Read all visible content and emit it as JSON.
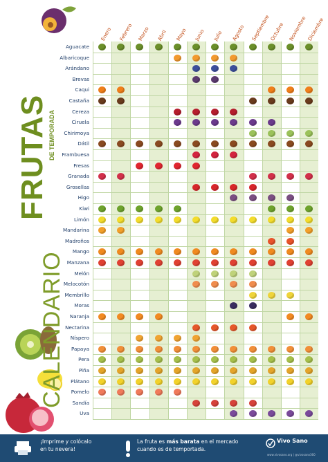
{
  "title": {
    "main": "CALENDARIO",
    "accent": "FRUTAS",
    "sub": "DE TEMPORADA"
  },
  "months": [
    "Enero",
    "Febrero",
    "Marzo",
    "Abril",
    "Mayo",
    "Junio",
    "Julio",
    "Agosto",
    "Septiembre",
    "Octubre",
    "Noviembre",
    "Diciembre"
  ],
  "fruits": [
    {
      "name": "Aguacate",
      "color": "#6b8f2a",
      "months": [
        0,
        1,
        2,
        3,
        4,
        5,
        6,
        7,
        8,
        9,
        10,
        11
      ]
    },
    {
      "name": "Albaricoque",
      "color": "#f29a2e",
      "months": [
        4,
        5,
        6,
        7
      ]
    },
    {
      "name": "Arándano",
      "color": "#3c4f9c",
      "months": [
        5,
        6,
        7
      ]
    },
    {
      "name": "Brevas",
      "color": "#5b3a6e",
      "months": [
        5,
        6
      ]
    },
    {
      "name": "Caqui",
      "color": "#f07f1a",
      "months": [
        0,
        1,
        9,
        10,
        11
      ]
    },
    {
      "name": "Castaña",
      "color": "#6a3b1d",
      "months": [
        0,
        1,
        8,
        9,
        10,
        11
      ]
    },
    {
      "name": "Cereza",
      "color": "#b51d2c",
      "months": [
        4,
        5,
        6,
        7
      ]
    },
    {
      "name": "Ciruela",
      "color": "#6b3a8c",
      "months": [
        4,
        5,
        6,
        7,
        8,
        9
      ]
    },
    {
      "name": "Chirimoya",
      "color": "#9bc25a",
      "months": [
        8,
        9,
        10,
        11
      ]
    },
    {
      "name": "Dátil",
      "color": "#8a4a20",
      "months": [
        0,
        1,
        2,
        3,
        4,
        5,
        6,
        7,
        8,
        9,
        10,
        11
      ]
    },
    {
      "name": "Frambuesa",
      "color": "#d3233f",
      "months": [
        5,
        6,
        7
      ]
    },
    {
      "name": "Fresas",
      "color": "#e0262f",
      "months": [
        2,
        3,
        4,
        5
      ]
    },
    {
      "name": "Granada",
      "color": "#d2304a",
      "months": [
        0,
        1,
        8,
        9,
        10,
        11
      ]
    },
    {
      "name": "Grosellas",
      "color": "#d7262a",
      "months": [
        5,
        6,
        7,
        8
      ]
    },
    {
      "name": "Higo",
      "color": "#7b4f82",
      "months": [
        7,
        8,
        9,
        10
      ]
    },
    {
      "name": "Kiwi",
      "color": "#6ea32c",
      "months": [
        0,
        1,
        2,
        3,
        4,
        9,
        10,
        11
      ]
    },
    {
      "name": "Limón",
      "color": "#f3dc2c",
      "months": [
        0,
        1,
        2,
        3,
        4,
        5,
        6,
        7,
        8,
        9,
        10,
        11
      ]
    },
    {
      "name": "Mandarina",
      "color": "#f3a02a",
      "months": [
        0,
        1,
        10,
        11
      ]
    },
    {
      "name": "Madroños",
      "color": "#e9542a",
      "months": [
        9,
        10
      ]
    },
    {
      "name": "Mango",
      "color": "#f08a1f",
      "months": [
        0,
        1,
        2,
        3,
        4,
        5,
        6,
        7,
        8,
        9,
        10,
        11
      ]
    },
    {
      "name": "Manzana",
      "color": "#e04132",
      "months": [
        0,
        1,
        2,
        3,
        4,
        5,
        6,
        7,
        8,
        9,
        10,
        11
      ]
    },
    {
      "name": "Melón",
      "color": "#bfd27a",
      "months": [
        5,
        6,
        7,
        8
      ]
    },
    {
      "name": "Melocotón",
      "color": "#f08c4d",
      "months": [
        5,
        6,
        7,
        8
      ]
    },
    {
      "name": "Membrillo",
      "color": "#efd43a",
      "months": [
        8,
        9,
        10
      ]
    },
    {
      "name": "Moras",
      "color": "#3a2d60",
      "months": [
        7,
        8
      ]
    },
    {
      "name": "Naranja",
      "color": "#f28a22",
      "months": [
        0,
        1,
        2,
        3,
        10,
        11
      ]
    },
    {
      "name": "Nectarina",
      "color": "#e5572a",
      "months": [
        5,
        6,
        7,
        8
      ]
    },
    {
      "name": "Níspero",
      "color": "#f0a432",
      "months": [
        2,
        3,
        4,
        5
      ]
    },
    {
      "name": "Papaya",
      "color": "#f18f38",
      "months": [
        0,
        1,
        2,
        3,
        4,
        5,
        6,
        7,
        8,
        9,
        10,
        11
      ]
    },
    {
      "name": "Pera",
      "color": "#a6c04a",
      "months": [
        0,
        1,
        2,
        3,
        4,
        5,
        6,
        7,
        8,
        9,
        10,
        11
      ]
    },
    {
      "name": "Piña",
      "color": "#e4a52a",
      "months": [
        0,
        1,
        2,
        3,
        4,
        5,
        6,
        7,
        8,
        9,
        10,
        11
      ]
    },
    {
      "name": "Plátano",
      "color": "#f2d22a",
      "months": [
        0,
        1,
        2,
        3,
        4,
        5,
        6,
        7,
        8,
        9,
        10,
        11
      ]
    },
    {
      "name": "Pomelo",
      "color": "#f07a5a",
      "months": [
        0,
        1,
        2,
        3,
        4
      ]
    },
    {
      "name": "Sandía",
      "color": "#d6423a",
      "months": [
        5,
        6,
        7,
        8
      ]
    },
    {
      "name": "Uva",
      "color": "#7a4a9a",
      "months": [
        7,
        8,
        9,
        10,
        11
      ]
    }
  ],
  "footer": {
    "left_line1": "¡Imprime y colócalo",
    "left_line2": "en tu nevera!",
    "mid_line1_a": "La fruta es ",
    "mid_line1_b": "más barata",
    "mid_line1_c": " en el mercado",
    "mid_line2": "cuando es de temportada.",
    "brand": "Vivo Sano",
    "brand_sub": "www.vivosano.org | @vivosano360"
  },
  "colors": {
    "grid_line": "#bfd6a3",
    "green_col": "#e6efd2",
    "white_col": "#ffffff",
    "title_green": "#7f9c2a",
    "navy": "#1f4b73"
  }
}
